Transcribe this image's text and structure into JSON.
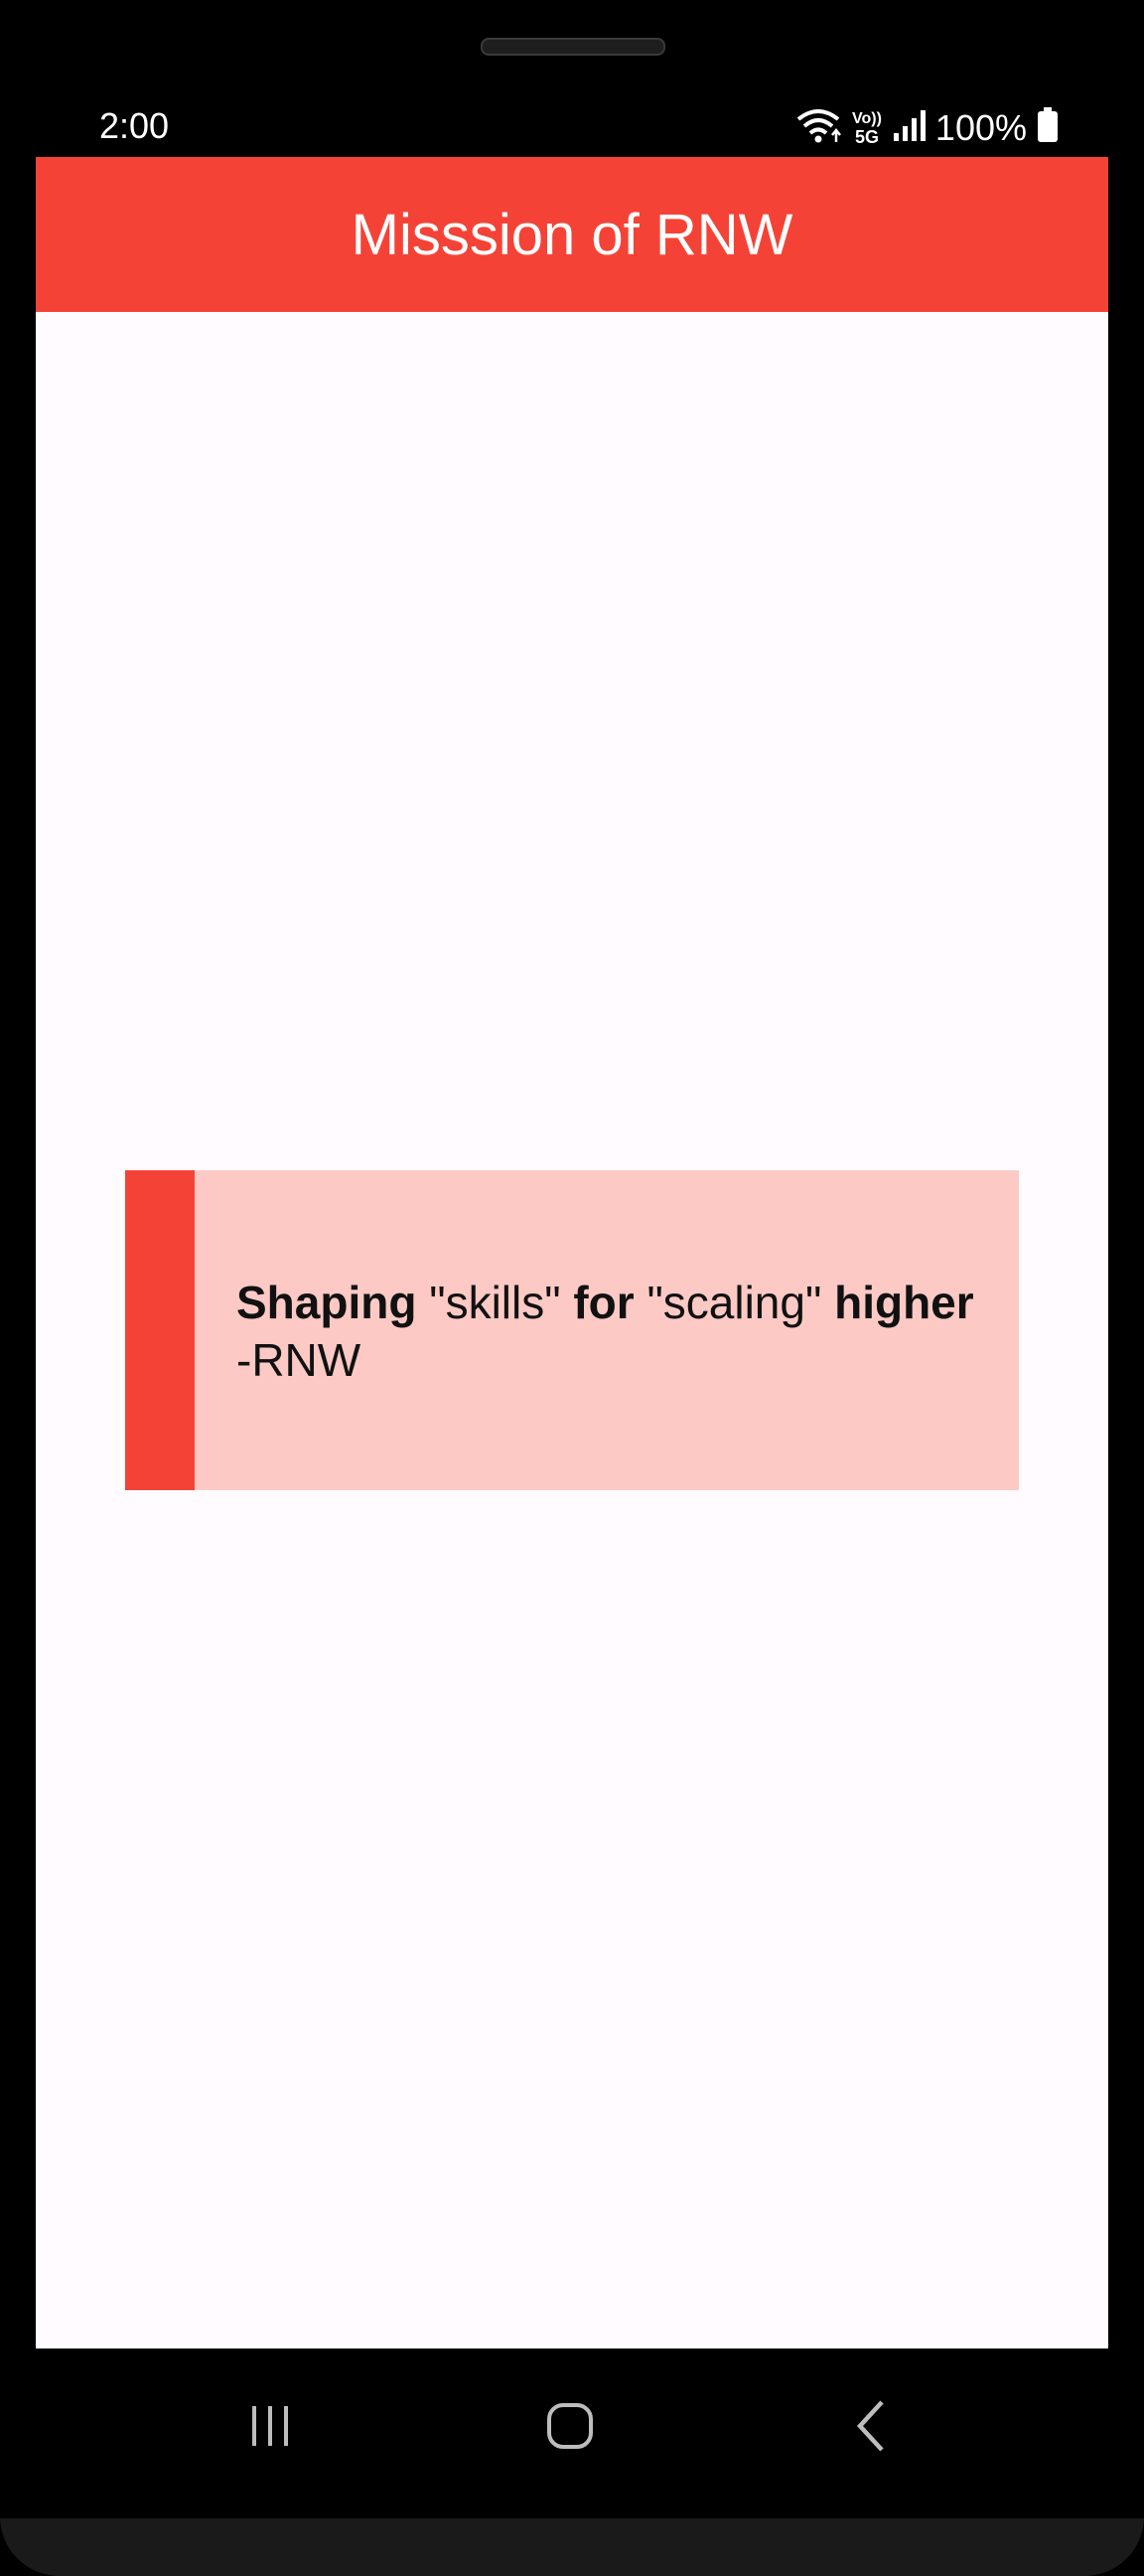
{
  "status_bar": {
    "time": "2:00",
    "battery": "100%",
    "network_label": "5G",
    "volte_label": "Vo))"
  },
  "app_bar": {
    "title": "Misssion of RNW"
  },
  "quote": {
    "w1": "Shaping",
    "w2": " \"skills\" ",
    "w3": "for",
    "w4": " \"scaling\" ",
    "w5": "higher",
    "attribution": "-RNW"
  },
  "colors": {
    "accent": "#f44336",
    "card_background": "#fcc9c5",
    "screen_background": "#fffbfe"
  },
  "nav": {
    "icons": [
      "recent-apps-icon",
      "home-icon",
      "back-icon"
    ]
  }
}
